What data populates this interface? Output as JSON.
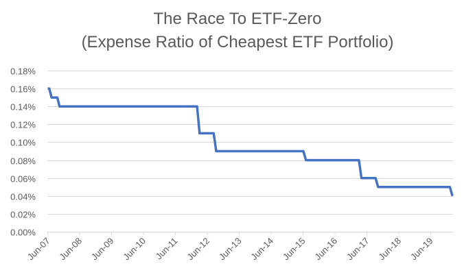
{
  "chart_data": {
    "type": "line",
    "title": "The Race To ETF-Zero",
    "subtitle": "(Expense Ratio of Cheapest ETF Portfolio)",
    "xlabel": "",
    "ylabel": "",
    "ylim": [
      0,
      0.18
    ],
    "xlim_years_since_jun07": [
      0,
      12.75
    ],
    "grid": true,
    "y_ticks": [
      "0.00%",
      "0.02%",
      "0.04%",
      "0.06%",
      "0.08%",
      "0.10%",
      "0.12%",
      "0.14%",
      "0.16%",
      "0.18%"
    ],
    "y_tick_values": [
      0,
      0.02,
      0.04,
      0.06,
      0.08,
      0.1,
      0.12,
      0.14,
      0.16,
      0.18
    ],
    "x_ticks": [
      "Jun-07",
      "Jun-08",
      "Jun-09",
      "Jun-10",
      "Jun-11",
      "Jun-12",
      "Jun-13",
      "Jun-14",
      "Jun-15",
      "Jun-16",
      "Jun-17",
      "Jun-18",
      "Jun-19"
    ],
    "series": [
      {
        "name": "Expense Ratio",
        "color": "#4472C4",
        "points": [
          {
            "t": 0.0,
            "v": 0.16
          },
          {
            "t": 0.05,
            "v": 0.16
          },
          {
            "t": 0.12,
            "v": 0.15
          },
          {
            "t": 0.3,
            "v": 0.15
          },
          {
            "t": 0.37,
            "v": 0.14
          },
          {
            "t": 4.68,
            "v": 0.14
          },
          {
            "t": 4.76,
            "v": 0.11
          },
          {
            "t": 5.2,
            "v": 0.11
          },
          {
            "t": 5.28,
            "v": 0.09
          },
          {
            "t": 8.01,
            "v": 0.09
          },
          {
            "t": 8.09,
            "v": 0.08
          },
          {
            "t": 9.75,
            "v": 0.08
          },
          {
            "t": 9.83,
            "v": 0.06
          },
          {
            "t": 10.27,
            "v": 0.06
          },
          {
            "t": 10.35,
            "v": 0.05
          },
          {
            "t": 12.6,
            "v": 0.05
          },
          {
            "t": 12.68,
            "v": 0.04
          }
        ]
      }
    ]
  }
}
